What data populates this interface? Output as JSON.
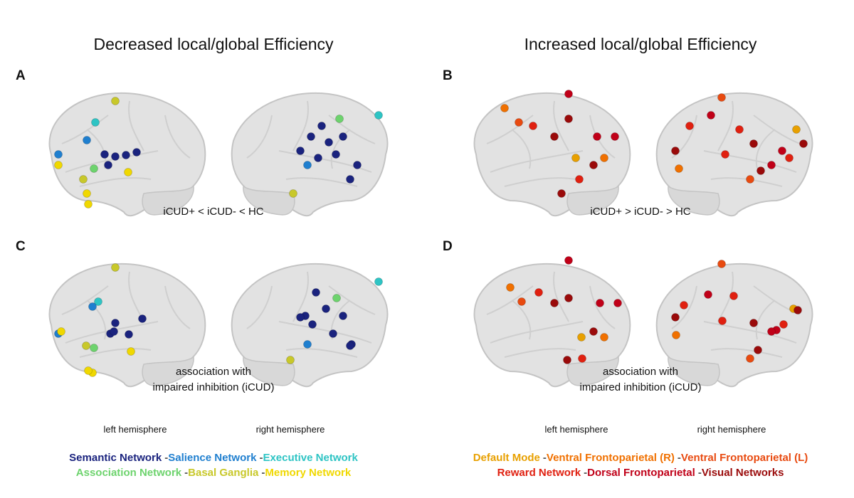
{
  "separator": "-",
  "columns": [
    {
      "title": "Decreased local/global Efficiency",
      "panels": [
        {
          "label": "A",
          "caption": [
            "iCUD+ < iCUD- < HC"
          ]
        },
        {
          "label": "C",
          "caption": [
            "association with",
            "impaired inhibition (iCUD)"
          ]
        }
      ],
      "hemispheres": [
        "left hemisphere",
        "right hemisphere"
      ],
      "legend": [
        [
          {
            "name": "Semantic Network",
            "color": "#1a237e"
          },
          {
            "name": "Salience Network",
            "color": "#1f7fcf"
          },
          {
            "name": "Executive Network",
            "color": "#2ec4c4"
          }
        ],
        [
          {
            "name": "Association Network",
            "color": "#6dd36d"
          },
          {
            "name": "Basal Ganglia",
            "color": "#c8c82a"
          },
          {
            "name": "Memory Network",
            "color": "#f0d800"
          }
        ]
      ]
    },
    {
      "title": "Increased local/global Efficiency",
      "panels": [
        {
          "label": "B",
          "caption": [
            "iCUD+ > iCUD- > HC"
          ]
        },
        {
          "label": "D",
          "caption": [
            "association with",
            "impaired inhibition (iCUD)"
          ]
        }
      ],
      "hemispheres": [
        "left hemisphere",
        "right hemisphere"
      ],
      "legend": [
        [
          {
            "name": "Default Mode",
            "color": "#e8a000"
          },
          {
            "name": "Ventral Frontoparietal (R)",
            "color": "#f07000"
          },
          {
            "name": "Ventral Frontoparietal (L)",
            "color": "#e84a10"
          }
        ],
        [
          {
            "name": "Reward Network",
            "color": "#e02010"
          },
          {
            "name": "Dorsal Frontoparietal",
            "color": "#c00018"
          },
          {
            "name": "Visual Networks",
            "color": "#9a0a0a"
          }
        ]
      ]
    }
  ]
}
